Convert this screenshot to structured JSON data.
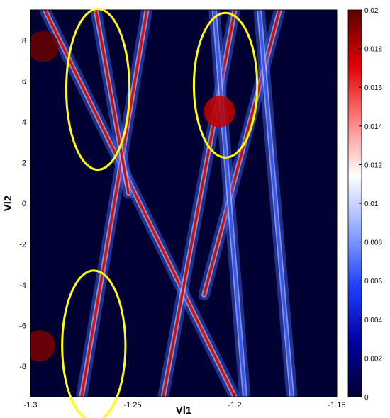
{
  "chart_data": {
    "type": "heatmap",
    "xlabel": "Vl1",
    "ylabel": "Vl2",
    "xlim": [
      -1.3,
      -1.15
    ],
    "ylim": [
      -9.5,
      9.5
    ],
    "x_ticks": [
      -1.3,
      -1.25,
      -1.2,
      -1.15
    ],
    "x_tick_labels": [
      "-1.3",
      "-1.25",
      "-1.2",
      "-1.15"
    ],
    "y_ticks": [
      8,
      6,
      4,
      2,
      0,
      -2,
      -4,
      -6,
      -8
    ],
    "y_tick_labels": [
      "8",
      "6",
      "4",
      "2",
      "0",
      "-2",
      "-4",
      "-6",
      "-8"
    ],
    "colorbar": {
      "range": [
        0,
        0.02
      ],
      "ticks": [
        0.02,
        0.018,
        0.016,
        0.014,
        0.012,
        0.01,
        0.008,
        0.006,
        0.004,
        0.002,
        0
      ],
      "tick_labels": [
        "0.02",
        "0.018",
        "0.016",
        "0.014",
        "0.012",
        "0.01",
        "0.008",
        "0.006",
        "0.004",
        "0.002",
        "0"
      ],
      "colormap": [
        "#000033",
        "#0000a0",
        "#1e40ff",
        "#8fa8ff",
        "#ffffff",
        "#ff8080",
        "#e00000",
        "#5a0000"
      ]
    },
    "features": {
      "diamond_lines": [
        {
          "from": [
            -1.293,
            9.5
          ],
          "to": [
            -1.2,
            -9.5
          ],
          "color": "#d61010"
        },
        {
          "from": [
            -1.243,
            9.5
          ],
          "to": [
            -1.275,
            -9.5
          ],
          "color": "#d61010"
        },
        {
          "from": [
            -1.2,
            9.5
          ],
          "to": [
            -1.235,
            -9.5
          ],
          "color": "#c81010"
        },
        {
          "from": [
            -1.178,
            9.5
          ],
          "to": [
            -1.215,
            -4.5
          ],
          "color": "#c81010"
        },
        {
          "from": [
            -1.268,
            9.5
          ],
          "to": [
            -1.252,
            0.5
          ],
          "color": "#c81010"
        },
        {
          "from": [
            -1.21,
            9.5
          ],
          "to": [
            -1.195,
            -9.5
          ],
          "color": "#3355ff"
        },
        {
          "from": [
            -1.188,
            9.5
          ],
          "to": [
            -1.172,
            -9.5
          ],
          "color": "#3355ff"
        }
      ],
      "hot_spots": [
        {
          "x": -1.2938,
          "y": 7.7,
          "color": "#6a0000"
        },
        {
          "x": -1.2955,
          "y": -7.0,
          "color": "#7a0000"
        },
        {
          "x": -1.2075,
          "y": 4.5,
          "color": "#c00000"
        }
      ]
    },
    "annotations": [
      {
        "shape": "ellipse",
        "color": "#ffff00",
        "center": [
          -1.267,
          5.6
        ],
        "rx": 0.0155,
        "ry": 3.95
      },
      {
        "shape": "ellipse",
        "color": "#ffff00",
        "center": [
          -1.2045,
          5.8
        ],
        "rx": 0.0155,
        "ry": 3.55
      },
      {
        "shape": "ellipse",
        "color": "#ffff00",
        "center": [
          -1.269,
          -7.0
        ],
        "rx": 0.0155,
        "ry": 3.7
      }
    ]
  }
}
